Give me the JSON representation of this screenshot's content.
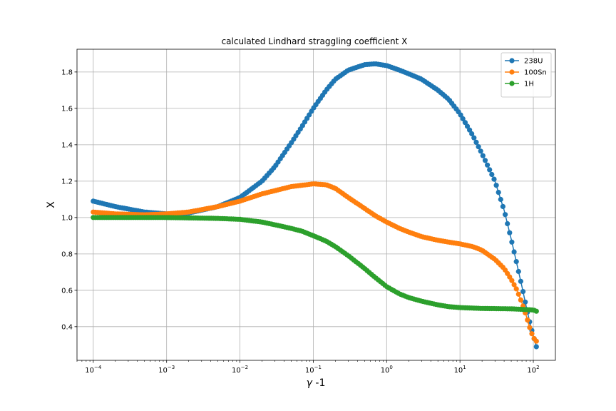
{
  "chart_data": {
    "type": "line",
    "title": "calculated Lindhard straggling coefficient X",
    "xlabel": "γ -1",
    "ylabel": "X",
    "xscale": "log",
    "xlim": [
      6e-05,
      200
    ],
    "ylim": [
      0.215,
      1.925
    ],
    "grid": true,
    "legend_position": "top-right",
    "x_ticks": [
      {
        "value": 0.0001,
        "base": "10",
        "exp": "−4"
      },
      {
        "value": 0.001,
        "base": "10",
        "exp": "−3"
      },
      {
        "value": 0.01,
        "base": "10",
        "exp": "−2"
      },
      {
        "value": 0.1,
        "base": "10",
        "exp": "−1"
      },
      {
        "value": 1,
        "base": "10",
        "exp": "0"
      },
      {
        "value": 10,
        "base": "10",
        "exp": "1"
      },
      {
        "value": 100,
        "base": "10",
        "exp": "2"
      }
    ],
    "y_ticks": [
      "0.4",
      "0.6",
      "0.8",
      "1.0",
      "1.2",
      "1.4",
      "1.6",
      "1.8"
    ],
    "series": [
      {
        "name": "238U",
        "color": "#1f77b4",
        "x": [
          0.0001,
          0.0002,
          0.0005,
          0.001,
          0.002,
          0.005,
          0.01,
          0.02,
          0.03,
          0.05,
          0.07,
          0.1,
          0.15,
          0.2,
          0.3,
          0.5,
          0.7,
          1,
          1.5,
          2,
          3,
          5,
          7,
          10,
          15,
          20,
          30,
          40,
          50,
          60,
          70,
          80,
          90,
          100,
          110
        ],
        "y": [
          1.09,
          1.06,
          1.03,
          1.02,
          1.025,
          1.06,
          1.11,
          1.2,
          1.28,
          1.41,
          1.5,
          1.6,
          1.7,
          1.76,
          1.81,
          1.84,
          1.845,
          1.835,
          1.81,
          1.79,
          1.76,
          1.7,
          1.65,
          1.57,
          1.45,
          1.35,
          1.2,
          1.04,
          0.88,
          0.74,
          0.62,
          0.51,
          0.42,
          0.35,
          0.29
        ]
      },
      {
        "name": "100Sn",
        "color": "#ff7f0e",
        "x": [
          0.0001,
          0.0002,
          0.0005,
          0.001,
          0.002,
          0.005,
          0.01,
          0.02,
          0.05,
          0.1,
          0.15,
          0.2,
          0.3,
          0.5,
          0.7,
          1,
          1.5,
          2,
          3,
          5,
          7,
          10,
          15,
          20,
          30,
          40,
          50,
          60,
          70,
          80,
          90,
          100,
          110
        ],
        "y": [
          1.03,
          1.02,
          1.015,
          1.02,
          1.03,
          1.06,
          1.09,
          1.13,
          1.17,
          1.185,
          1.18,
          1.16,
          1.11,
          1.05,
          1.01,
          0.975,
          0.94,
          0.92,
          0.895,
          0.875,
          0.865,
          0.855,
          0.84,
          0.82,
          0.77,
          0.72,
          0.66,
          0.6,
          0.53,
          0.46,
          0.39,
          0.34,
          0.32
        ]
      },
      {
        "name": "1H",
        "color": "#2ca02c",
        "x": [
          0.0001,
          0.0002,
          0.0005,
          0.001,
          0.002,
          0.005,
          0.01,
          0.02,
          0.03,
          0.05,
          0.07,
          0.1,
          0.15,
          0.2,
          0.3,
          0.5,
          0.7,
          1,
          1.5,
          2,
          3,
          5,
          7,
          10,
          20,
          50,
          100,
          110
        ],
        "y": [
          1.0,
          1.0,
          1.0,
          1.0,
          0.998,
          0.995,
          0.99,
          0.975,
          0.96,
          0.94,
          0.925,
          0.9,
          0.87,
          0.84,
          0.79,
          0.72,
          0.67,
          0.62,
          0.58,
          0.56,
          0.54,
          0.52,
          0.51,
          0.505,
          0.5,
          0.498,
          0.492,
          0.485
        ]
      }
    ]
  }
}
